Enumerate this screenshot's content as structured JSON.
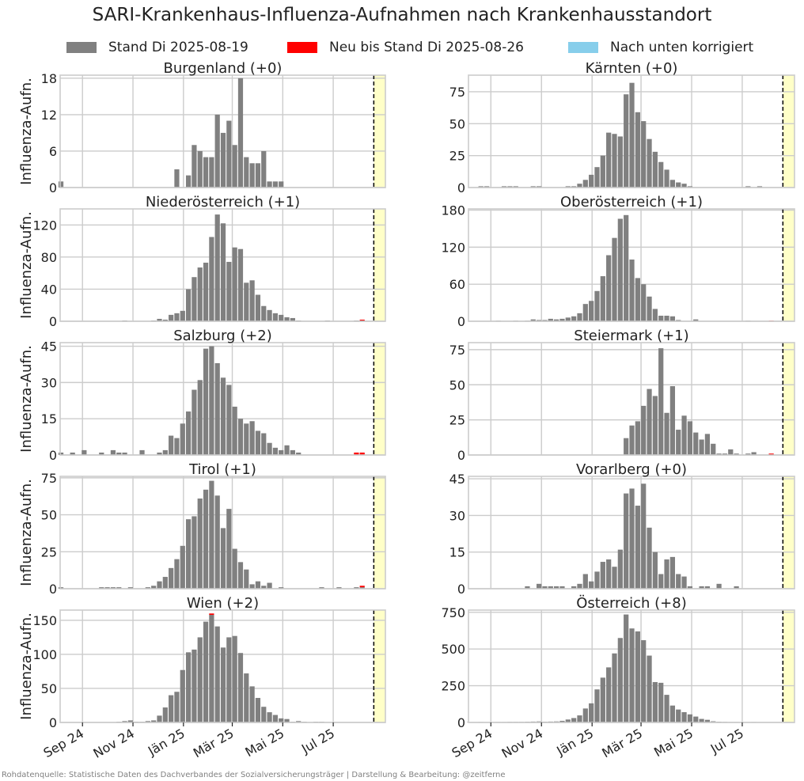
{
  "figure_title": "SARI-Krankenhaus-Influenza-Aufnahmen nach Krankenhausstandort",
  "legend": [
    {
      "label": "Stand Di 2025-08-19",
      "color": "#808080"
    },
    {
      "label": "Neu bis Stand Di 2025-08-26",
      "color": "#ff0000"
    },
    {
      "label": "Nach unten korrigiert",
      "color": "#87ceeb"
    }
  ],
  "source_note": "Rohdatenquelle: Statistische Daten des Dachverbandes der Sozialversicherungsträger | Darstellung & Bearbeitung: @zeitferne",
  "colors": {
    "bar": "#808080",
    "new": "#ff0000",
    "corrected": "#87ceeb",
    "highlight": "#ffffc8",
    "grid": "#cccccc",
    "marker": "#000000"
  },
  "chart_data": [
    {
      "type": "bar",
      "title": "Burgenland (+0)",
      "ylabel": "Influenza-Aufn.",
      "ylim": [
        0,
        18.5
      ],
      "yticks": [
        0,
        6,
        12,
        18
      ],
      "x_start": "2024-08-06",
      "x_interval_days": 7,
      "xticks": [
        "Sep 24",
        "Nov 24",
        "Jän 25",
        "Mär 25",
        "Mai 25",
        "Jul 25"
      ],
      "marker": "2025-08-19",
      "highlight_after": "2025-08-19",
      "grid": true,
      "values": [
        1,
        0,
        0,
        0,
        0,
        0,
        0,
        0,
        0,
        0,
        0,
        0,
        0,
        0,
        0,
        0,
        0,
        0,
        0,
        0,
        3,
        0,
        2,
        7,
        6,
        5,
        5,
        12,
        9,
        11,
        7,
        18,
        5,
        4,
        4,
        6,
        1,
        1,
        1,
        0,
        0,
        0,
        0,
        0,
        0,
        0,
        0,
        0,
        0,
        0,
        0,
        0,
        0,
        0,
        0
      ],
      "new": []
    },
    {
      "type": "bar",
      "title": "Kärnten (+0)",
      "ylabel": "",
      "ylim": [
        0,
        88
      ],
      "yticks": [
        0,
        25,
        50,
        75
      ],
      "x_start": "2024-08-06",
      "x_interval_days": 7,
      "xticks": [
        "Sep 24",
        "Nov 24",
        "Jän 25",
        "Mär 25",
        "Mai 25",
        "Jul 25"
      ],
      "marker": "2025-08-19",
      "highlight_after": "2025-08-19",
      "grid": true,
      "values": [
        0,
        0,
        1,
        1,
        0,
        0,
        1,
        1,
        1,
        0,
        0,
        1,
        1,
        0,
        0,
        0,
        0,
        1,
        1,
        3,
        6,
        10,
        16,
        25,
        43,
        42,
        40,
        73,
        82,
        59,
        52,
        38,
        28,
        20,
        14,
        6,
        4,
        3,
        1,
        0,
        0,
        0,
        0,
        0,
        0,
        0,
        0,
        0,
        1,
        0,
        1,
        0,
        0,
        0,
        0
      ],
      "new": []
    },
    {
      "type": "bar",
      "title": "Niederösterreich (+1)",
      "ylabel": "Influenza-Aufn.",
      "ylim": [
        0,
        140
      ],
      "yticks": [
        0,
        40,
        80,
        120
      ],
      "x_start": "2024-08-06",
      "x_interval_days": 7,
      "xticks": [
        "Sep 24",
        "Nov 24",
        "Jän 25",
        "Mär 25",
        "Mai 25",
        "Jul 25"
      ],
      "marker": "2025-08-19",
      "highlight_after": "2025-08-19",
      "grid": true,
      "values": [
        0,
        0,
        0,
        0,
        0,
        0,
        0,
        0,
        0,
        0,
        0,
        1,
        0,
        0,
        0,
        0,
        1,
        3,
        2,
        8,
        10,
        13,
        40,
        55,
        67,
        73,
        105,
        133,
        122,
        74,
        92,
        90,
        48,
        51,
        33,
        19,
        14,
        10,
        8,
        5,
        4,
        1,
        0,
        0,
        0,
        0,
        1,
        0,
        0,
        0,
        0,
        1,
        1,
        0,
        0
      ],
      "new": [
        {
          "index": 52,
          "value": 1
        }
      ]
    },
    {
      "type": "bar",
      "title": "Oberösterreich (+1)",
      "ylabel": "",
      "ylim": [
        0,
        182
      ],
      "yticks": [
        0,
        60,
        120,
        180
      ],
      "x_start": "2024-08-06",
      "x_interval_days": 7,
      "xticks": [
        "Sep 24",
        "Nov 24",
        "Jän 25",
        "Mär 25",
        "Mai 25",
        "Jul 25"
      ],
      "marker": "2025-08-19",
      "highlight_after": "2025-08-19",
      "grid": true,
      "values": [
        0,
        0,
        0,
        0,
        0,
        1,
        0,
        0,
        1,
        0,
        1,
        3,
        2,
        2,
        4,
        3,
        4,
        6,
        8,
        13,
        28,
        33,
        49,
        73,
        107,
        135,
        166,
        172,
        100,
        70,
        60,
        40,
        20,
        9,
        9,
        8,
        2,
        0,
        0,
        3,
        0,
        0,
        0,
        0,
        0,
        0,
        0,
        0,
        1,
        0,
        0,
        0,
        0,
        0,
        0
      ],
      "new": [
        {
          "index": 52,
          "value": 1
        }
      ]
    },
    {
      "type": "bar",
      "title": "Salzburg (+2)",
      "ylabel": "Influenza-Aufn.",
      "ylim": [
        0,
        46.5
      ],
      "yticks": [
        0,
        15,
        30,
        45
      ],
      "x_start": "2024-08-06",
      "x_interval_days": 7,
      "xticks": [
        "Sep 24",
        "Nov 24",
        "Jän 25",
        "Mär 25",
        "Mai 25",
        "Jul 25"
      ],
      "marker": "2025-08-19",
      "highlight_after": "2025-08-19",
      "grid": true,
      "values": [
        1,
        0,
        1,
        0,
        2,
        0,
        0,
        1,
        0,
        2,
        1,
        1,
        0,
        0,
        2,
        0,
        0,
        1,
        2,
        8,
        7,
        13,
        18,
        27,
        31,
        44,
        45,
        38,
        32,
        29,
        20,
        15,
        13,
        14,
        10,
        9,
        5,
        3,
        2,
        4,
        2,
        1,
        0,
        0,
        0,
        0,
        0,
        0,
        0,
        0,
        0,
        0,
        0,
        0,
        0
      ],
      "new": [
        {
          "index": 51,
          "value": 1
        },
        {
          "index": 52,
          "value": 1
        }
      ]
    },
    {
      "type": "bar",
      "title": "Steiermark (+1)",
      "ylabel": "",
      "ylim": [
        0,
        80
      ],
      "yticks": [
        0,
        25,
        50,
        75
      ],
      "x_start": "2024-08-06",
      "x_interval_days": 7,
      "xticks": [
        "Sep 24",
        "Nov 24",
        "Jän 25",
        "Mär 25",
        "Mai 25",
        "Jul 25"
      ],
      "marker": "2025-08-19",
      "highlight_after": "2025-08-19",
      "grid": true,
      "values": [
        0,
        0,
        0,
        0,
        0,
        0,
        0,
        0,
        0,
        0,
        0,
        0,
        0,
        0,
        0,
        0,
        0,
        0,
        0,
        0,
        0,
        0,
        0,
        0,
        0,
        0,
        0,
        12,
        21,
        24,
        35,
        47,
        42,
        76,
        30,
        49,
        18,
        28,
        24,
        16,
        11,
        15,
        8,
        1,
        1,
        4,
        1,
        0,
        1,
        2,
        0,
        0,
        0,
        0,
        0
      ],
      "new": [
        {
          "index": 52,
          "value": 1
        }
      ]
    },
    {
      "type": "bar",
      "title": "Tirol (+1)",
      "ylabel": "Influenza-Aufn.",
      "ylim": [
        0,
        76
      ],
      "yticks": [
        0,
        25,
        50,
        75
      ],
      "x_start": "2024-08-06",
      "x_interval_days": 7,
      "xticks": [
        "Sep 24",
        "Nov 24",
        "Jän 25",
        "Mär 25",
        "Mai 25",
        "Jul 25"
      ],
      "marker": "2025-08-19",
      "highlight_after": "2025-08-19",
      "grid": true,
      "values": [
        1,
        0,
        0,
        0,
        0,
        0,
        0,
        1,
        1,
        1,
        1,
        0,
        1,
        0,
        0,
        1,
        2,
        5,
        8,
        14,
        20,
        29,
        47,
        49,
        61,
        67,
        73,
        63,
        41,
        54,
        27,
        18,
        13,
        3,
        5,
        2,
        4,
        0,
        1,
        0,
        0,
        0,
        0,
        0,
        0,
        1,
        0,
        0,
        1,
        0,
        0,
        1,
        1,
        0,
        0
      ],
      "new": [
        {
          "index": 52,
          "value": 1
        }
      ]
    },
    {
      "type": "bar",
      "title": "Vorarlberg (+0)",
      "ylabel": "",
      "ylim": [
        0,
        46
      ],
      "yticks": [
        0,
        15,
        30,
        45
      ],
      "x_start": "2024-08-06",
      "x_interval_days": 7,
      "xticks": [
        "Sep 24",
        "Nov 24",
        "Jän 25",
        "Mär 25",
        "Mai 25",
        "Jul 25"
      ],
      "marker": "2025-08-19",
      "highlight_after": "2025-08-19",
      "grid": true,
      "values": [
        0,
        0,
        0,
        0,
        0,
        0,
        0,
        0,
        0,
        0,
        1,
        0,
        2,
        1,
        1,
        1,
        1,
        0,
        1,
        2,
        6,
        3,
        7,
        11,
        12,
        9,
        16,
        39,
        41,
        34,
        43,
        25,
        15,
        6,
        12,
        13,
        6,
        5,
        1,
        0,
        1,
        1,
        0,
        2,
        0,
        0,
        1,
        0,
        0,
        0,
        0,
        0,
        0,
        0,
        0
      ],
      "new": []
    },
    {
      "type": "bar",
      "title": "Wien (+2)",
      "ylabel": "Influenza-Aufn.",
      "ylim": [
        0,
        165
      ],
      "yticks": [
        0,
        50,
        100,
        150
      ],
      "x_start": "2024-08-06",
      "x_interval_days": 7,
      "xticks": [
        "Sep 24",
        "Nov 24",
        "Jän 25",
        "Mär 25",
        "Mai 25",
        "Jul 25"
      ],
      "marker": "2025-08-19",
      "highlight_after": "2025-08-19",
      "grid": true,
      "values": [
        0,
        0,
        0,
        0,
        0,
        0,
        0,
        0,
        0,
        0,
        1,
        2,
        3,
        1,
        1,
        2,
        3,
        10,
        22,
        40,
        45,
        77,
        103,
        107,
        125,
        148,
        158,
        141,
        110,
        125,
        127,
        102,
        72,
        53,
        36,
        23,
        15,
        11,
        6,
        5,
        1,
        2,
        1,
        0,
        1,
        1,
        0,
        0,
        0,
        0,
        0,
        0,
        0,
        0,
        0
      ],
      "new": [
        {
          "index": 26,
          "value": 2
        }
      ]
    },
    {
      "type": "bar",
      "title": "Österreich (+8)",
      "ylabel": "",
      "ylim": [
        0,
        765
      ],
      "yticks": [
        0,
        250,
        500,
        750
      ],
      "x_start": "2024-08-06",
      "x_interval_days": 7,
      "xticks": [
        "Sep 24",
        "Nov 24",
        "Jän 25",
        "Mär 25",
        "Mai 25",
        "Jul 25"
      ],
      "marker": "2025-08-19",
      "highlight_after": "2025-08-19",
      "grid": true,
      "values": [
        2,
        2,
        3,
        2,
        2,
        3,
        3,
        4,
        4,
        4,
        5,
        6,
        7,
        5,
        6,
        7,
        11,
        20,
        30,
        48,
        95,
        130,
        225,
        305,
        375,
        470,
        575,
        735,
        640,
        620,
        560,
        455,
        275,
        270,
        188,
        115,
        88,
        70,
        55,
        40,
        24,
        18,
        8,
        5,
        4,
        3,
        3,
        2,
        2,
        3,
        2,
        1,
        2,
        0,
        0
      ],
      "new": []
    }
  ]
}
